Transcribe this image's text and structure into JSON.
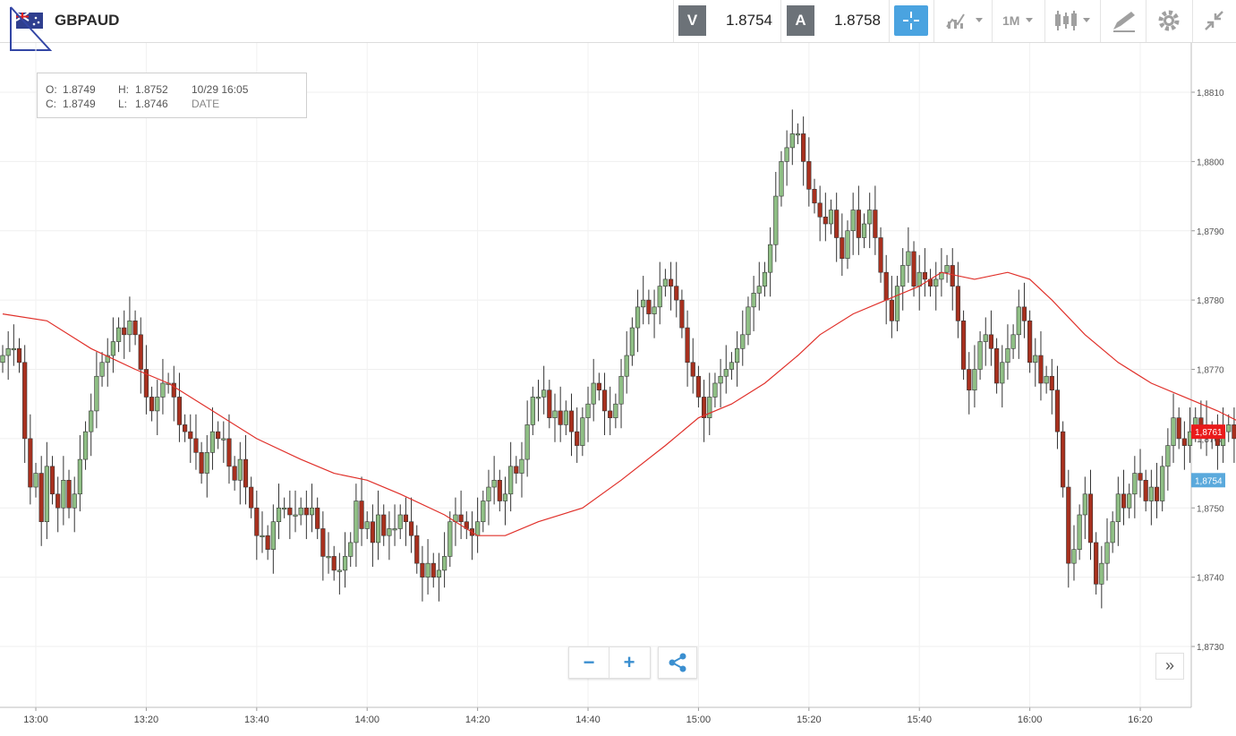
{
  "header": {
    "symbol": "GBPAUD",
    "sell_label": "V",
    "sell_price": "1.8754",
    "buy_label": "A",
    "buy_price": "1.8758",
    "timeframe": "1M"
  },
  "ohlc_box": {
    "o_label": "O:",
    "o_value": "1.8749",
    "h_label": "H:",
    "h_value": "1.8752",
    "c_label": "C:",
    "c_value": "1.8749",
    "l_label": "L:",
    "l_value": "1.8746",
    "date_value": "10/29 16:05",
    "date_label": "DATE"
  },
  "colors": {
    "up_candle": "#8fbf85",
    "down_candle": "#a8301e",
    "ma_line": "#e0302a",
    "current_price_tag": "#ea1b1b",
    "ask_price_tag": "#5aa9dc",
    "accent": "#4aa3e0"
  },
  "price_tags": {
    "current": "1,8761",
    "ask": "1,8754"
  },
  "chart_data": {
    "type": "candlestick",
    "x_start": "12:54",
    "interval_minutes": 1,
    "xticks": [
      "13:00",
      "13:20",
      "13:40",
      "14:00",
      "14:20",
      "14:40",
      "15:00",
      "15:20",
      "15:40",
      "16:00",
      "16:20"
    ],
    "yticks": [
      "1,8730",
      "1,8740",
      "1,8750",
      "1,8760",
      "1,8770",
      "1,8780",
      "1,8790",
      "1,8800",
      "1,8810"
    ],
    "ylim": [
      1.8722,
      1.8816
    ],
    "grid": true,
    "close": [
      1.8772,
      1.8773,
      1.8773,
      1.8771,
      1.876,
      1.8753,
      1.8755,
      1.8748,
      1.8756,
      1.8752,
      1.875,
      1.8754,
      1.875,
      1.8752,
      1.8757,
      1.8761,
      1.8764,
      1.8769,
      1.8771,
      1.8772,
      1.8774,
      1.8776,
      1.8775,
      1.8777,
      1.8775,
      1.877,
      1.8766,
      1.8764,
      1.8766,
      1.8768,
      1.8768,
      1.8766,
      1.8762,
      1.8761,
      1.876,
      1.8758,
      1.8755,
      1.8758,
      1.8761,
      1.876,
      1.876,
      1.8756,
      1.8754,
      1.8757,
      1.8753,
      1.875,
      1.8746,
      1.8746,
      1.8744,
      1.8748,
      1.875,
      1.875,
      1.8749,
      1.8749,
      1.875,
      1.8749,
      1.875,
      1.8747,
      1.8743,
      1.8743,
      1.8741,
      1.8741,
      1.8743,
      1.8745,
      1.8751,
      1.8747,
      1.8748,
      1.8745,
      1.8749,
      1.8746,
      1.8747,
      1.8747,
      1.8749,
      1.8748,
      1.8746,
      1.8742,
      1.874,
      1.8742,
      1.874,
      1.8741,
      1.8743,
      1.8748,
      1.8749,
      1.8748,
      1.8747,
      1.8746,
      1.8748,
      1.8751,
      1.8753,
      1.8754,
      1.8751,
      1.8752,
      1.8756,
      1.8755,
      1.8757,
      1.8762,
      1.8766,
      1.8766,
      1.8767,
      1.8763,
      1.8764,
      1.8762,
      1.8764,
      1.8761,
      1.8759,
      1.8763,
      1.8765,
      1.8768,
      1.8767,
      1.8764,
      1.8763,
      1.8765,
      1.8769,
      1.8772,
      1.8776,
      1.8779,
      1.878,
      1.8778,
      1.8779,
      1.8782,
      1.8783,
      1.8782,
      1.878,
      1.8776,
      1.8771,
      1.8769,
      1.8766,
      1.8763,
      1.8766,
      1.8768,
      1.8769,
      1.877,
      1.8771,
      1.8773,
      1.8775,
      1.8779,
      1.8781,
      1.8782,
      1.8784,
      1.8788,
      1.8795,
      1.88,
      1.8802,
      1.8804,
      1.8804,
      1.88,
      1.8796,
      1.8794,
      1.8792,
      1.8791,
      1.8793,
      1.8789,
      1.8786,
      1.879,
      1.8793,
      1.8789,
      1.8791,
      1.8793,
      1.8789,
      1.8784,
      1.878,
      1.8777,
      1.8782,
      1.8785,
      1.8787,
      1.8782,
      1.8784,
      1.8783,
      1.8782,
      1.8783,
      1.8784,
      1.8785,
      1.8782,
      1.8777,
      1.877,
      1.8767,
      1.877,
      1.8774,
      1.8775,
      1.8773,
      1.8768,
      1.8771,
      1.8773,
      1.8775,
      1.8779,
      1.8777,
      1.8771,
      1.8772,
      1.8768,
      1.8769,
      1.8767,
      1.8761,
      1.8753,
      1.8742,
      1.8744,
      1.8749,
      1.8752,
      1.8745,
      1.8739,
      1.8742,
      1.8745,
      1.8748,
      1.8752,
      1.875,
      1.8752,
      1.8755,
      1.8754,
      1.8751,
      1.8753,
      1.8751,
      1.8756,
      1.8759,
      1.8763,
      1.876,
      1.8759,
      1.8761,
      1.8763,
      1.8762,
      1.876,
      1.8761,
      1.8759,
      1.8761,
      1.8762,
      1.876,
      1.8757,
      1.8754,
      1.8756,
      1.8758,
      1.876,
      1.8761,
      1.8758
    ],
    "ma_series_name": "",
    "ma": [
      [
        0,
        1.8778
      ],
      [
        8,
        1.8777
      ],
      [
        16,
        1.8773
      ],
      [
        24,
        1.877
      ],
      [
        30,
        1.8768
      ],
      [
        38,
        1.8764
      ],
      [
        46,
        1.876
      ],
      [
        54,
        1.8757
      ],
      [
        60,
        1.8755
      ],
      [
        66,
        1.8754
      ],
      [
        72,
        1.8752
      ],
      [
        80,
        1.8749
      ],
      [
        86,
        1.8746
      ],
      [
        91,
        1.8746
      ],
      [
        97,
        1.8748
      ],
      [
        105,
        1.875
      ],
      [
        112,
        1.8754
      ],
      [
        120,
        1.8759
      ],
      [
        126,
        1.8763
      ],
      [
        132,
        1.8765
      ],
      [
        138,
        1.8768
      ],
      [
        144,
        1.8772
      ],
      [
        148,
        1.8775
      ],
      [
        154,
        1.8778
      ],
      [
        160,
        1.878
      ],
      [
        166,
        1.8782
      ],
      [
        170,
        1.8784
      ],
      [
        176,
        1.8783
      ],
      [
        182,
        1.8784
      ],
      [
        186,
        1.8783
      ],
      [
        190,
        1.878
      ],
      [
        196,
        1.8775
      ],
      [
        202,
        1.8771
      ],
      [
        208,
        1.8768
      ],
      [
        214,
        1.8766
      ],
      [
        220,
        1.8764
      ],
      [
        225,
        1.8762
      ]
    ]
  },
  "zoom": {
    "minus": "−",
    "plus": "+"
  },
  "forward_label": "»"
}
